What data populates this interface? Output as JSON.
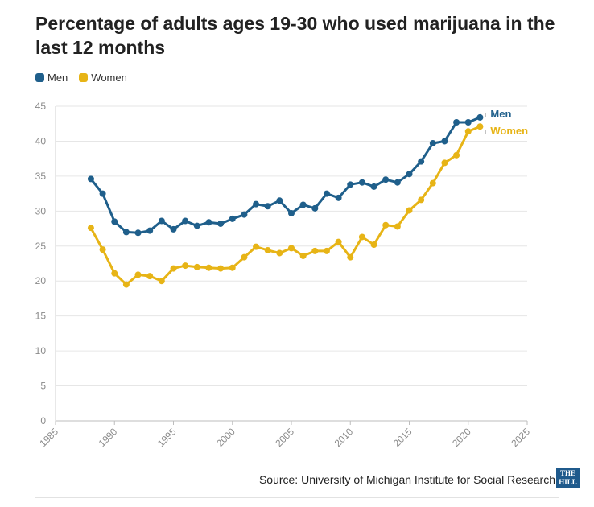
{
  "title": "Percentage of adults ages 19-30 who used marijuana in the last 12 months",
  "source": "Source: University of Michigan Institute for Social Research",
  "logo_text": "THE HILL",
  "chart_data": {
    "type": "line",
    "title": "Percentage of adults ages 19-30 who used marijuana in the last 12 months",
    "xlabel": "",
    "ylabel": "",
    "xlim": [
      1985,
      2025
    ],
    "ylim": [
      0,
      45
    ],
    "xticks": [
      1985,
      1990,
      1995,
      2000,
      2005,
      2010,
      2015,
      2020,
      2025
    ],
    "yticks": [
      0,
      5,
      10,
      15,
      20,
      25,
      30,
      35,
      40,
      45
    ],
    "grid": "horizontal",
    "legend": "top-left",
    "x": [
      1988,
      1989,
      1990,
      1991,
      1992,
      1993,
      1994,
      1995,
      1996,
      1997,
      1998,
      1999,
      2000,
      2001,
      2002,
      2003,
      2004,
      2005,
      2006,
      2007,
      2008,
      2009,
      2010,
      2011,
      2012,
      2013,
      2014,
      2015,
      2016,
      2017,
      2018,
      2019,
      2020,
      2021
    ],
    "series": [
      {
        "name": "Men",
        "color": "#1f5f8b",
        "values": [
          34.6,
          32.5,
          28.5,
          27.0,
          26.9,
          27.2,
          28.6,
          27.4,
          28.6,
          27.9,
          28.4,
          28.2,
          28.9,
          29.5,
          31.0,
          30.7,
          31.5,
          29.7,
          30.9,
          30.4,
          32.5,
          31.9,
          33.8,
          34.1,
          33.5,
          34.5,
          34.1,
          35.3,
          37.1,
          39.7,
          40.0,
          42.7,
          42.7,
          43.4
        ]
      },
      {
        "name": "Women",
        "color": "#e7b416",
        "values": [
          27.6,
          24.5,
          21.1,
          19.5,
          20.9,
          20.7,
          20.0,
          21.8,
          22.2,
          22.0,
          21.9,
          21.8,
          21.9,
          23.4,
          24.9,
          24.4,
          24.0,
          24.7,
          23.6,
          24.3,
          24.3,
          25.6,
          23.4,
          26.3,
          25.2,
          28.0,
          27.8,
          30.1,
          31.6,
          34.0,
          36.9,
          38.0,
          41.4,
          42.1
        ]
      }
    ]
  }
}
